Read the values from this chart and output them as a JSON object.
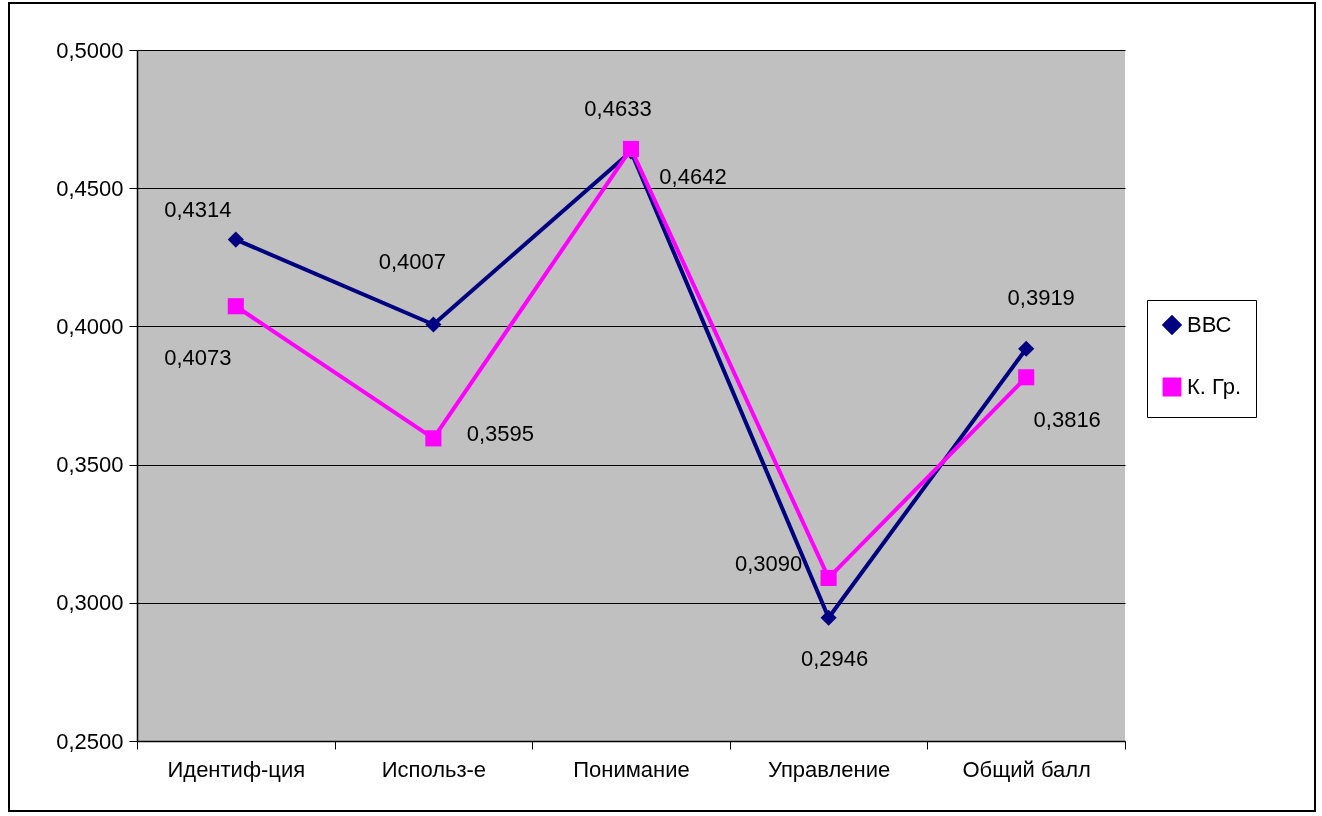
{
  "chart_data": {
    "type": "line",
    "categories": [
      "Идентиф-ция",
      "Использ-е",
      "Понимание",
      "Управление",
      "Общий балл"
    ],
    "series": [
      {
        "name": "ВВС",
        "color": "#000080",
        "marker": "diamond",
        "values": [
          0.4314,
          0.4007,
          0.4633,
          0.2946,
          0.3919
        ],
        "value_labels": [
          "0,4314",
          "0,4007",
          "0,4633",
          "0,2946",
          "0,3919"
        ]
      },
      {
        "name": "К. Гр.",
        "color": "#ff00ff",
        "marker": "square",
        "values": [
          0.4073,
          0.3595,
          0.4642,
          0.309,
          0.3816
        ],
        "value_labels": [
          "0,4073",
          "0,3595",
          "0,4642",
          "0,3090",
          "0,3816"
        ]
      }
    ],
    "ylim": [
      0.25,
      0.5
    ],
    "yticks": [
      {
        "value": 0.25,
        "label": "0,2500"
      },
      {
        "value": 0.3,
        "label": "0,3000"
      },
      {
        "value": 0.35,
        "label": "0,3500"
      },
      {
        "value": 0.4,
        "label": "0,4000"
      },
      {
        "value": 0.45,
        "label": "0,4500"
      },
      {
        "value": 0.5,
        "label": "0,5000"
      }
    ],
    "grid": "y",
    "legend": "right"
  }
}
